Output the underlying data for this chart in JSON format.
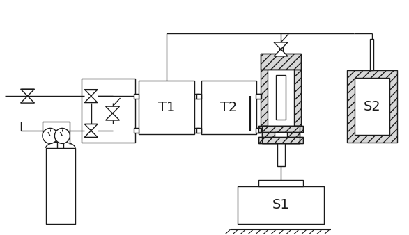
{
  "bg_color": "#ffffff",
  "line_color": "#1a1a1a",
  "lw": 1.0,
  "fig_w": 5.87,
  "fig_h": 3.38,
  "dpi": 100,
  "T1_label": "T1",
  "T2_label": "T2",
  "S1_label": "S1",
  "S2_label": "S2",
  "xlim": [
    0,
    11.7
  ],
  "ylim": [
    0,
    6.76
  ]
}
